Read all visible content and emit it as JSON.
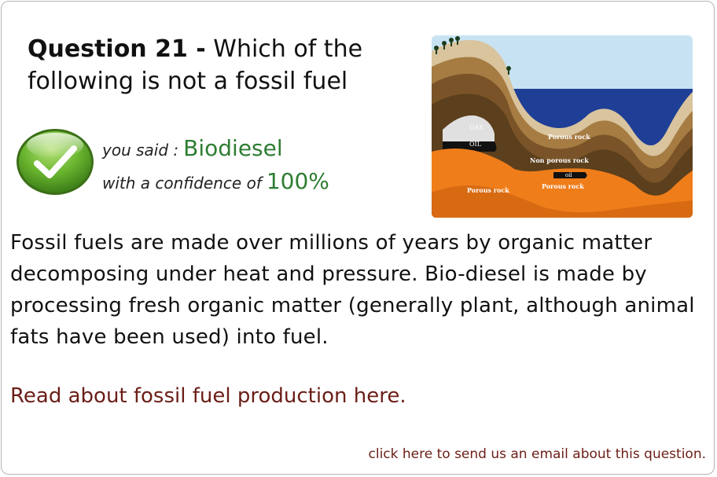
{
  "question": {
    "prefix": "Question 21 -",
    "text": "Which of the following is not a fossil fuel"
  },
  "answer": {
    "said_label": "you said :",
    "said_value": "Biodiesel",
    "confidence_label": "with a confidence of",
    "confidence_value": "100%"
  },
  "illustration": {
    "labels": {
      "gas": "GAS",
      "oil": "OIL",
      "porous_rock_top": "Porous rock",
      "non_porous_rock": "Non porous rock",
      "oil_small": "oil",
      "porous_rock_mid": "Porous rock",
      "porous_rock_left": "Porous rock"
    },
    "colors": {
      "sky": "#c7e3f3",
      "sea": "#1f3f96",
      "sand": "#d9c49e",
      "brown": "#8a6433",
      "dark_brown": "#5c3f1c",
      "orange": "#ef7d1a"
    }
  },
  "explanation": "Fossil fuels are made over millions of years by organic matter decomposing under heat and pressure. Bio-diesel is made by processing fresh organic matter (generally plant, although animal fats have been used) into fuel.",
  "links": {
    "read_more": "Read about fossil fuel production here.",
    "email": "click here to send us an email about this question."
  },
  "icons": {
    "result": "checkmark-icon"
  }
}
